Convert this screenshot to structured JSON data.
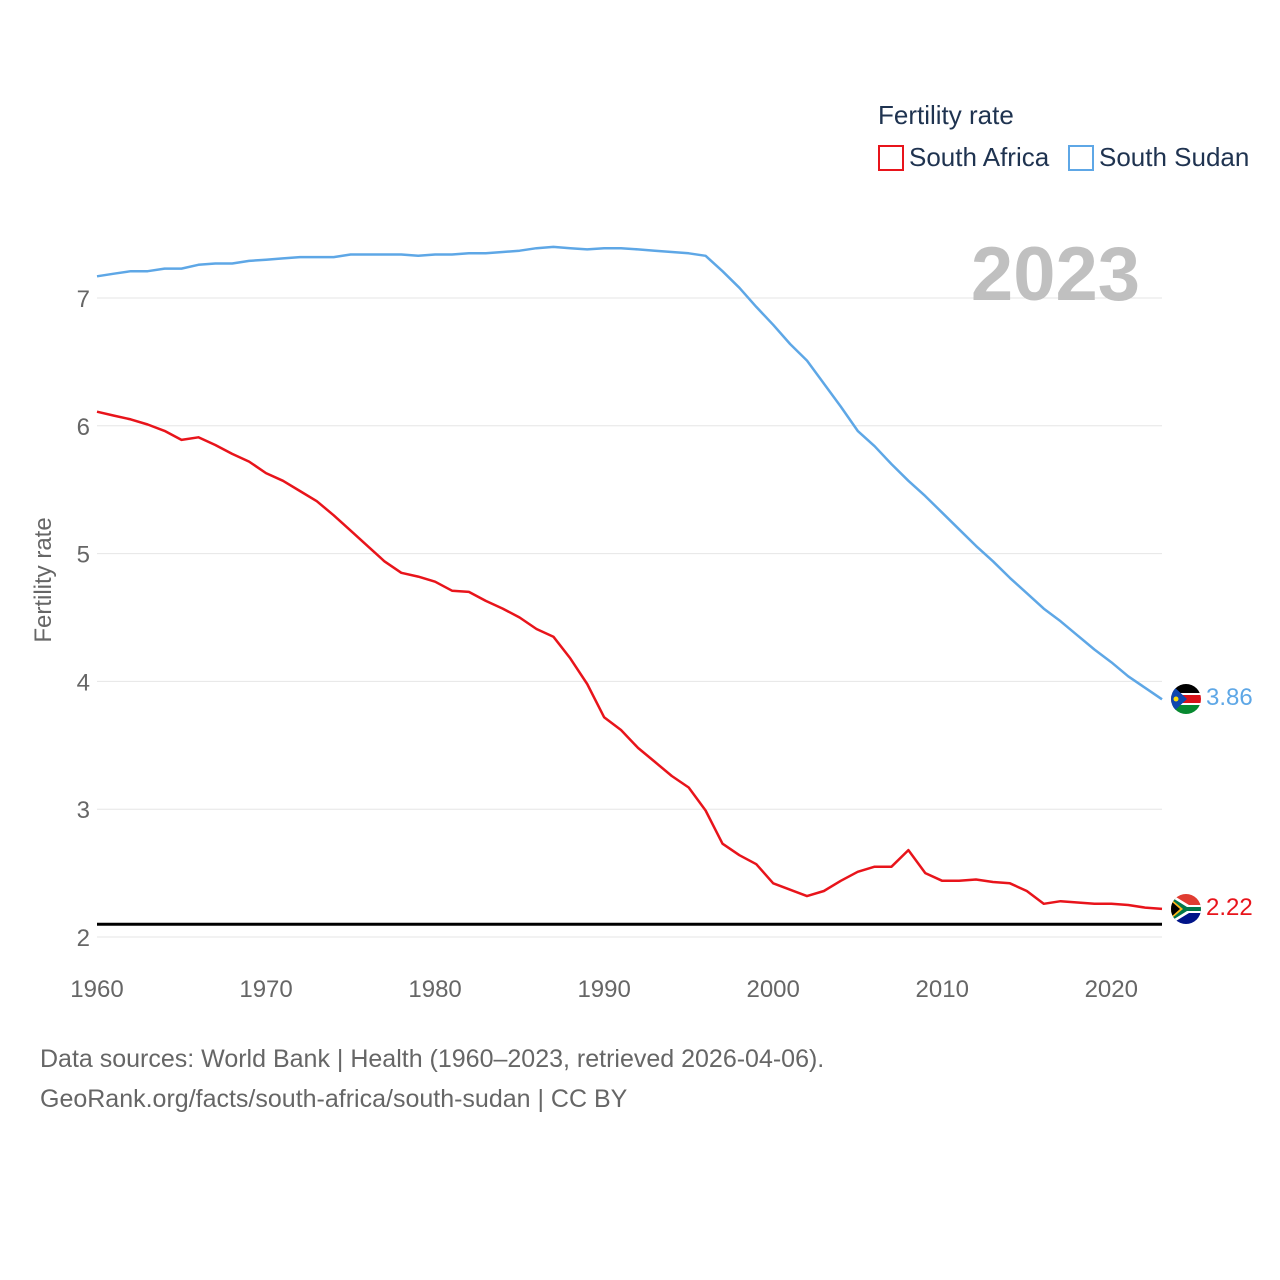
{
  "chart_data": {
    "type": "line",
    "legend_title": "Fertility rate",
    "ylabel": "Fertility rate",
    "xlabel": "",
    "current_year": "2023",
    "xlim": [
      1960,
      2023
    ],
    "ylim": [
      2,
      7.6
    ],
    "x_ticks": [
      1960,
      1970,
      1980,
      1990,
      2000,
      2010,
      2020
    ],
    "y_ticks": [
      2,
      3,
      4,
      5,
      6,
      7
    ],
    "reference_line": 2.1,
    "years": [
      1960,
      1961,
      1962,
      1963,
      1964,
      1965,
      1966,
      1967,
      1968,
      1969,
      1970,
      1971,
      1972,
      1973,
      1974,
      1975,
      1976,
      1977,
      1978,
      1979,
      1980,
      1981,
      1982,
      1983,
      1984,
      1985,
      1986,
      1987,
      1988,
      1989,
      1990,
      1991,
      1992,
      1993,
      1994,
      1995,
      1996,
      1997,
      1998,
      1999,
      2000,
      2001,
      2002,
      2003,
      2004,
      2005,
      2006,
      2007,
      2008,
      2009,
      2010,
      2011,
      2012,
      2013,
      2014,
      2015,
      2016,
      2017,
      2018,
      2019,
      2020,
      2021,
      2022,
      2023
    ],
    "series": [
      {
        "name": "South Africa",
        "color": "#e8141b",
        "end_label": "2.22",
        "flag": "south-africa-flag-icon",
        "values": [
          6.11,
          6.08,
          6.05,
          6.01,
          5.96,
          5.89,
          5.91,
          5.85,
          5.78,
          5.72,
          5.63,
          5.57,
          5.49,
          5.41,
          5.3,
          5.18,
          5.06,
          4.94,
          4.85,
          4.82,
          4.78,
          4.71,
          4.7,
          4.63,
          4.57,
          4.5,
          4.41,
          4.35,
          4.18,
          3.98,
          3.72,
          3.62,
          3.48,
          3.37,
          3.26,
          3.17,
          2.99,
          2.73,
          2.64,
          2.57,
          2.42,
          2.37,
          2.32,
          2.36,
          2.44,
          2.51,
          2.55,
          2.55,
          2.68,
          2.5,
          2.44,
          2.44,
          2.45,
          2.43,
          2.42,
          2.36,
          2.26,
          2.28,
          2.27,
          2.26,
          2.26,
          2.25,
          2.23,
          2.22
        ]
      },
      {
        "name": "South Sudan",
        "color": "#5ea7e6",
        "end_label": "3.86",
        "flag": "south-sudan-flag-icon",
        "values": [
          7.17,
          7.19,
          7.21,
          7.21,
          7.23,
          7.23,
          7.26,
          7.27,
          7.27,
          7.29,
          7.3,
          7.31,
          7.32,
          7.32,
          7.32,
          7.34,
          7.34,
          7.34,
          7.34,
          7.33,
          7.34,
          7.34,
          7.35,
          7.35,
          7.36,
          7.37,
          7.39,
          7.4,
          7.39,
          7.38,
          7.39,
          7.39,
          7.38,
          7.37,
          7.36,
          7.35,
          7.33,
          7.21,
          7.08,
          6.93,
          6.79,
          6.64,
          6.51,
          6.33,
          6.15,
          5.96,
          5.84,
          5.7,
          5.57,
          5.45,
          5.32,
          5.19,
          5.06,
          4.94,
          4.81,
          4.69,
          4.57,
          4.47,
          4.36,
          4.25,
          4.15,
          4.04,
          3.95,
          3.86
        ]
      }
    ]
  },
  "footer": {
    "sources": "Data sources: World Bank | Health (1960–2023, retrieved 2026-04-06).",
    "credit": "GeoRank.org/facts/south-africa/south-sudan | CC BY"
  }
}
